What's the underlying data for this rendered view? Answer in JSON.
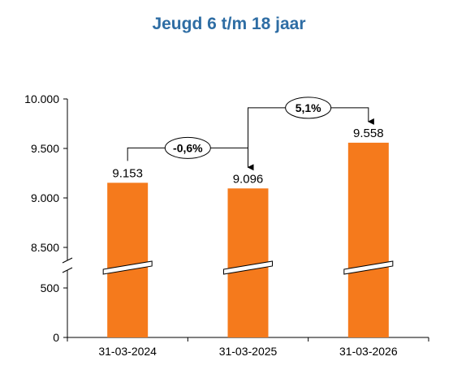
{
  "chart_data": {
    "type": "bar",
    "title": "Jeugd 6 t/m 18 jaar",
    "xlabel": "",
    "ylabel": "",
    "categories": [
      "31-03-2024",
      "31-03-2025",
      "31-03-2026"
    ],
    "values": [
      9153,
      9096,
      9558
    ],
    "value_labels": [
      "9.153",
      "9.096",
      "9.558"
    ],
    "axis_break": {
      "lower_range": [
        0,
        500
      ],
      "upper_range": [
        8500,
        10000
      ]
    },
    "yticks": [
      0,
      500,
      8500,
      9000,
      9500,
      10000
    ],
    "ytick_labels": [
      "0",
      "500",
      "8.500",
      "9.000",
      "9.500",
      "10.000"
    ],
    "changes": [
      {
        "from": 0,
        "to": 1,
        "label": "-0,6%"
      },
      {
        "from": 1,
        "to": 2,
        "label": "5,1%"
      }
    ],
    "grid": false,
    "legend": "none",
    "colors": {
      "bar": "#F57A1C",
      "title": "#2E6DA4",
      "axis": "#000000"
    }
  }
}
